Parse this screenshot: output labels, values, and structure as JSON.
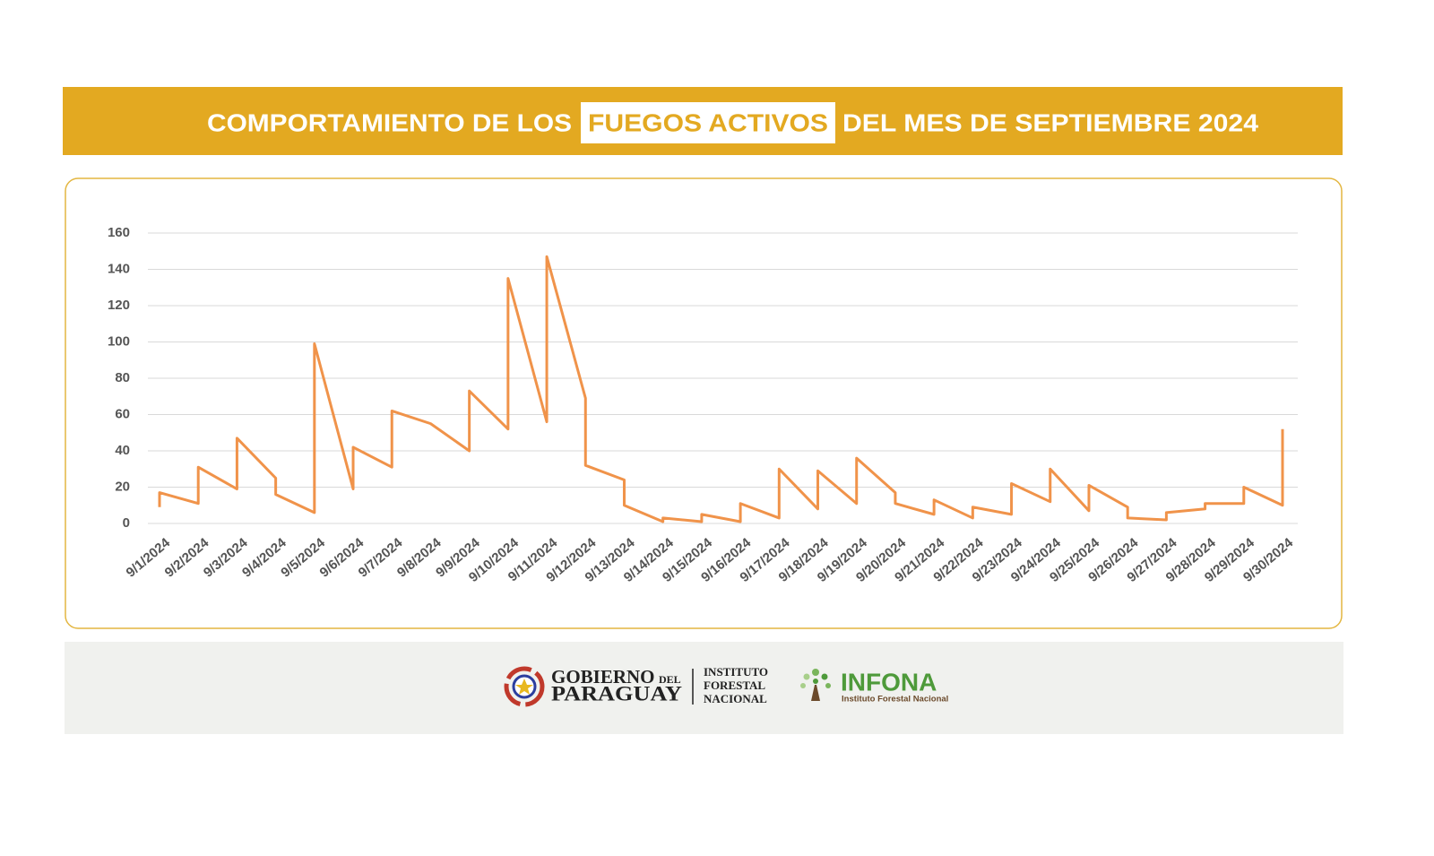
{
  "chart_data": {
    "type": "line",
    "title_parts": [
      "COMPORTAMIENTO DE LOS",
      "FUEGOS ACTIVOS",
      "DEL MES DE SEPTIEMBRE 2024"
    ],
    "categories": [
      "9/1/2024",
      "9/2/2024",
      "9/3/2024",
      "9/4/2024",
      "9/5/2024",
      "9/6/2024",
      "9/7/2024",
      "9/8/2024",
      "9/9/2024",
      "9/10/2024",
      "9/11/2024",
      "9/12/2024",
      "9/13/2024",
      "9/14/2024",
      "9/15/2024",
      "9/16/2024",
      "9/17/2024",
      "9/18/2024",
      "9/19/2024",
      "9/20/2024",
      "9/21/2024",
      "9/22/2024",
      "9/23/2024",
      "9/24/2024",
      "9/25/2024",
      "9/26/2024",
      "9/27/2024",
      "9/28/2024",
      "9/29/2024",
      "9/30/2024"
    ],
    "values": [
      [
        9,
        17
      ],
      [
        11,
        31
      ],
      [
        19,
        47
      ],
      [
        25,
        16
      ],
      [
        6,
        99
      ],
      [
        19,
        42
      ],
      [
        31,
        62
      ],
      [
        55,
        55
      ],
      [
        40,
        73
      ],
      [
        52,
        135
      ],
      [
        56,
        147
      ],
      [
        69,
        32
      ],
      [
        24,
        10
      ],
      [
        1,
        3
      ],
      [
        1,
        5
      ],
      [
        1,
        11
      ],
      [
        3,
        30
      ],
      [
        8,
        29
      ],
      [
        11,
        36
      ],
      [
        17,
        11
      ],
      [
        5,
        13
      ],
      [
        3,
        9
      ],
      [
        5,
        22
      ],
      [
        12,
        30
      ],
      [
        7,
        21
      ],
      [
        9,
        3
      ],
      [
        2,
        6
      ],
      [
        8,
        11
      ],
      [
        11,
        20
      ],
      [
        10,
        52
      ]
    ],
    "color": "#f0934a",
    "ylim": [
      0,
      160
    ],
    "yticks": [
      0,
      20,
      40,
      60,
      80,
      100,
      120,
      140,
      160
    ],
    "grid": true
  },
  "footer": {
    "gov": [
      "GOBIERNO",
      "DEL",
      "PARAGUAY"
    ],
    "institute": [
      "INSTITUTO",
      "FORESTAL",
      "NACIONAL"
    ],
    "brand": "INFONA",
    "brand_subtitle": "Instituto Forestal Nacional"
  }
}
